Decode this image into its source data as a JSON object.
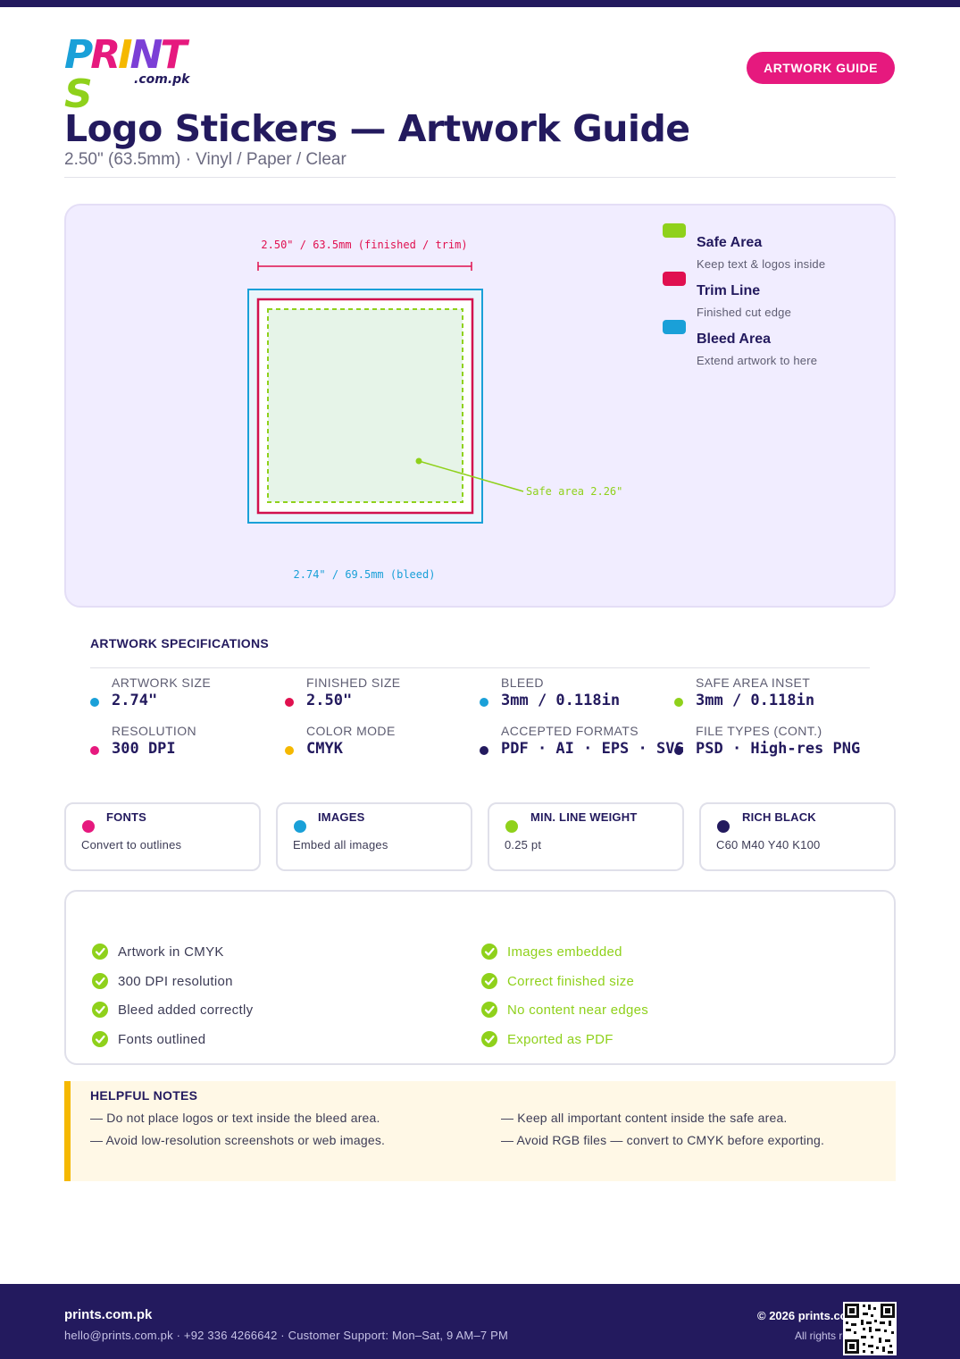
{
  "brand": {
    "logo_letters": [
      {
        "ch": "P",
        "color": "#1aa0d8"
      },
      {
        "ch": "R",
        "color": "#e6197e"
      },
      {
        "ch": "I",
        "color": "#f5b800"
      },
      {
        "ch": "N",
        "color": "#7b3fd6"
      },
      {
        "ch": "T",
        "color": "#e6197e"
      },
      {
        "ch": "S",
        "color": "#8fd11b"
      }
    ],
    "logo_suffix": ".com.pk"
  },
  "header": {
    "badge": "ARTWORK GUIDE",
    "title": "Logo Stickers — Artwork Guide",
    "subtitle": "2.50\" (63.5mm) · Vinyl / Paper / Clear"
  },
  "diagram": {
    "trim_label": "2.50\" / 63.5mm (finished / trim)",
    "bleed_label": "2.74\" / 69.5mm (bleed)",
    "safe_label": "Safe area 2.26\"",
    "legend": [
      {
        "title": "Safe Area",
        "desc": "Keep text & logos inside",
        "color": "#8fd11b"
      },
      {
        "title": "Trim Line",
        "desc": "Finished cut edge",
        "color": "#e0104f"
      },
      {
        "title": "Bleed Area",
        "desc": "Extend artwork to here",
        "color": "#1aa0d8"
      }
    ]
  },
  "specs": {
    "heading": "ARTWORK SPECIFICATIONS",
    "items": [
      {
        "label": "ARTWORK SIZE",
        "value": "2.74\"",
        "color": "#1aa0d8"
      },
      {
        "label": "FINISHED SIZE",
        "value": "2.50\"",
        "color": "#e0104f"
      },
      {
        "label": "BLEED",
        "value": "3mm / 0.118in",
        "color": "#1aa0d8"
      },
      {
        "label": "SAFE AREA INSET",
        "value": "3mm / 0.118in",
        "color": "#8fd11b"
      },
      {
        "label": "RESOLUTION",
        "value": "300 DPI",
        "color": "#e6197e"
      },
      {
        "label": "COLOR MODE",
        "value": "CMYK",
        "color": "#f5b800"
      },
      {
        "label": "ACCEPTED FORMATS",
        "value": "PDF · AI · EPS · SVG",
        "color": "#231a5e"
      },
      {
        "label": "FILE TYPES (CONT.)",
        "value": "PSD · High-res PNG",
        "color": "#231a5e"
      }
    ]
  },
  "cards": [
    {
      "title": "FONTS",
      "text": "Convert to outlines",
      "color": "#e6197e"
    },
    {
      "title": "IMAGES",
      "text": "Embed all images",
      "color": "#1aa0d8"
    },
    {
      "title": "MIN. LINE WEIGHT",
      "text": "0.25 pt",
      "color": "#8fd11b"
    },
    {
      "title": "RICH BLACK",
      "text": "C60 M40 Y40 K100",
      "color": "#231a5e"
    }
  ],
  "checklist": {
    "left": [
      "Artwork in CMYK",
      "300 DPI resolution",
      "Bleed added correctly",
      "Fonts outlined"
    ],
    "right": [
      "Images embedded",
      "Correct finished size",
      "No content near edges",
      "Exported as PDF"
    ]
  },
  "notes": {
    "title": "HELPFUL NOTES",
    "items": [
      "— Do not place logos or text inside the bleed area.",
      "— Keep all important content inside the safe area.",
      "— Avoid low-resolution screenshots or web images.",
      "— Avoid RGB files — convert to CMYK before exporting."
    ]
  },
  "footer": {
    "brand": "prints.com.pk",
    "contact": "hello@prints.com.pk · +92 336 4266642 · Customer Support: Mon–Sat, 9 AM–7 PM",
    "copyright": "© 2026 prints.com.pk",
    "rights": "All rights reserved"
  }
}
